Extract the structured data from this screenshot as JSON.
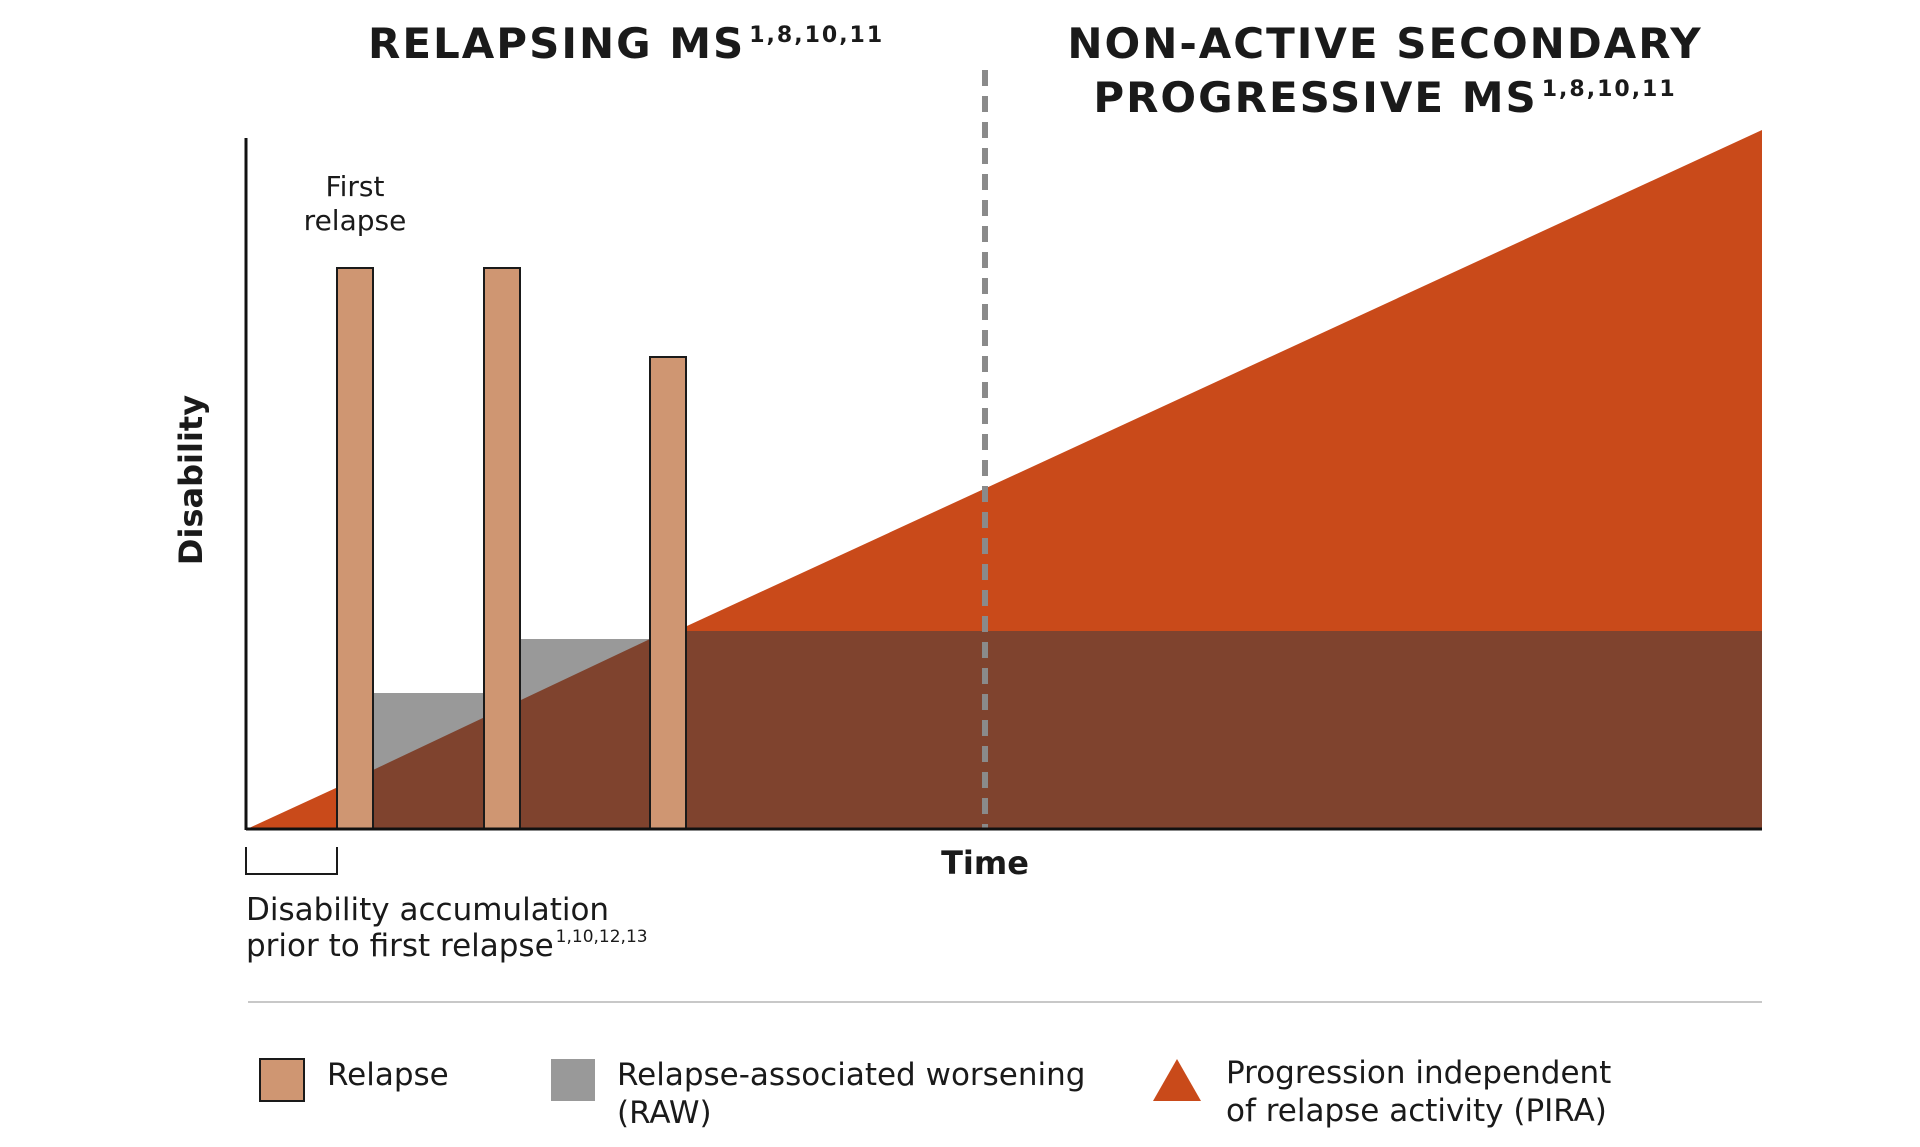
{
  "headings": {
    "left": {
      "text": "RELAPSING MS",
      "refs": "1,8,10,11"
    },
    "right": {
      "line1": "NON-ACTIVE SECONDARY",
      "line2": "PROGRESSIVE MS",
      "refs": "1,8,10,11"
    }
  },
  "axes": {
    "y_label": "Disability",
    "x_label": "Time"
  },
  "annotations": {
    "first_relapse_line1": "First",
    "first_relapse_line2": "relapse",
    "pre_relapse_line1": "Disability accumulation",
    "pre_relapse_line2": "prior to first relapse",
    "pre_relapse_refs": "1,10,12,13"
  },
  "legend": {
    "relapse": "Relapse",
    "raw_line1": "Relapse-associated worsening",
    "raw_line2": "(RAW)",
    "pira_line1": "Progression independent",
    "pira_line2": "of relapse activity (PIRA)"
  },
  "colors": {
    "relapse": "#cf9672",
    "raw": "#999999",
    "pira": "#c94a1a",
    "overlap": "#7f432e",
    "divider": "#8a8a8a",
    "axis": "#111111"
  }
}
